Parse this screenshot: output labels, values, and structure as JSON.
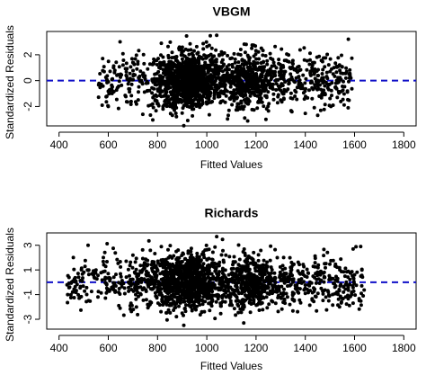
{
  "chart_data": [
    {
      "type": "scatter",
      "title": "VBGM",
      "xlabel": "Fitted Values",
      "ylabel": "Standardized Residuals",
      "xlim": [
        350,
        1850
      ],
      "ylim": [
        -3.5,
        3.8
      ],
      "xticks": [
        400,
        600,
        800,
        1000,
        1200,
        1400,
        1600,
        1800
      ],
      "yticks": [
        -2,
        0,
        2
      ],
      "reference_line": {
        "y": 0,
        "style": "dashed",
        "color": "#1010c8"
      },
      "point_color": "#000000",
      "x_range_of_points": [
        560,
        1590
      ],
      "residual_range": [
        -3.4,
        3.6
      ],
      "n_points_approx": 2000,
      "points_sample": [
        [
          575,
          -1.9
        ],
        [
          600,
          -2.0
        ],
        [
          650,
          0.5
        ],
        [
          660,
          1.2
        ],
        [
          700,
          1.4
        ],
        [
          740,
          -2.6
        ],
        [
          760,
          0.9
        ],
        [
          790,
          -0.3
        ],
        [
          850,
          0.7
        ],
        [
          880,
          -1.2
        ],
        [
          910,
          -0.6
        ],
        [
          940,
          2.1
        ],
        [
          960,
          0.4
        ],
        [
          1000,
          -1.8
        ],
        [
          1040,
          3.5
        ],
        [
          1060,
          1.0
        ],
        [
          1090,
          -2.3
        ],
        [
          1120,
          -1.0
        ],
        [
          1160,
          2.8
        ],
        [
          1200,
          -0.4
        ],
        [
          1240,
          -3.0
        ],
        [
          1300,
          -1.5
        ],
        [
          1350,
          1.3
        ],
        [
          1420,
          0.6
        ],
        [
          1480,
          -1.0
        ],
        [
          1540,
          0.8
        ],
        [
          1575,
          3.2
        ],
        [
          1585,
          0.2
        ]
      ]
    },
    {
      "type": "scatter",
      "title": "Richards",
      "xlabel": "Fitted Values",
      "ylabel": "Standardized Residuals",
      "xlim": [
        350,
        1850
      ],
      "ylim": [
        -3.8,
        4.0
      ],
      "xticks": [
        400,
        600,
        800,
        1000,
        1200,
        1400,
        1600,
        1800
      ],
      "yticks": [
        -3,
        -1,
        1,
        3
      ],
      "reference_line": {
        "y": 0,
        "style": "dashed",
        "color": "#1010c8"
      },
      "point_color": "#000000",
      "x_range_of_points": [
        430,
        1640
      ],
      "residual_range": [
        -3.6,
        3.7
      ],
      "n_points_approx": 2000,
      "points_sample": [
        [
          435,
          -1.0
        ],
        [
          455,
          -0.8
        ],
        [
          520,
          -1.5
        ],
        [
          550,
          1.0
        ],
        [
          580,
          2.0
        ],
        [
          620,
          -0.5
        ],
        [
          700,
          2.2
        ],
        [
          760,
          -1.8
        ],
        [
          840,
          0.6
        ],
        [
          900,
          -0.3
        ],
        [
          935,
          2.5
        ],
        [
          980,
          -2.4
        ],
        [
          1040,
          3.7
        ],
        [
          1070,
          -1.0
        ],
        [
          1110,
          1.6
        ],
        [
          1150,
          -3.3
        ],
        [
          1190,
          2.4
        ],
        [
          1230,
          -0.6
        ],
        [
          1280,
          -1.7
        ],
        [
          1340,
          1.2
        ],
        [
          1400,
          -0.9
        ],
        [
          1460,
          0.8
        ],
        [
          1520,
          -0.4
        ],
        [
          1600,
          0.6
        ],
        [
          1625,
          2.9
        ],
        [
          1635,
          -1.1
        ]
      ]
    }
  ]
}
